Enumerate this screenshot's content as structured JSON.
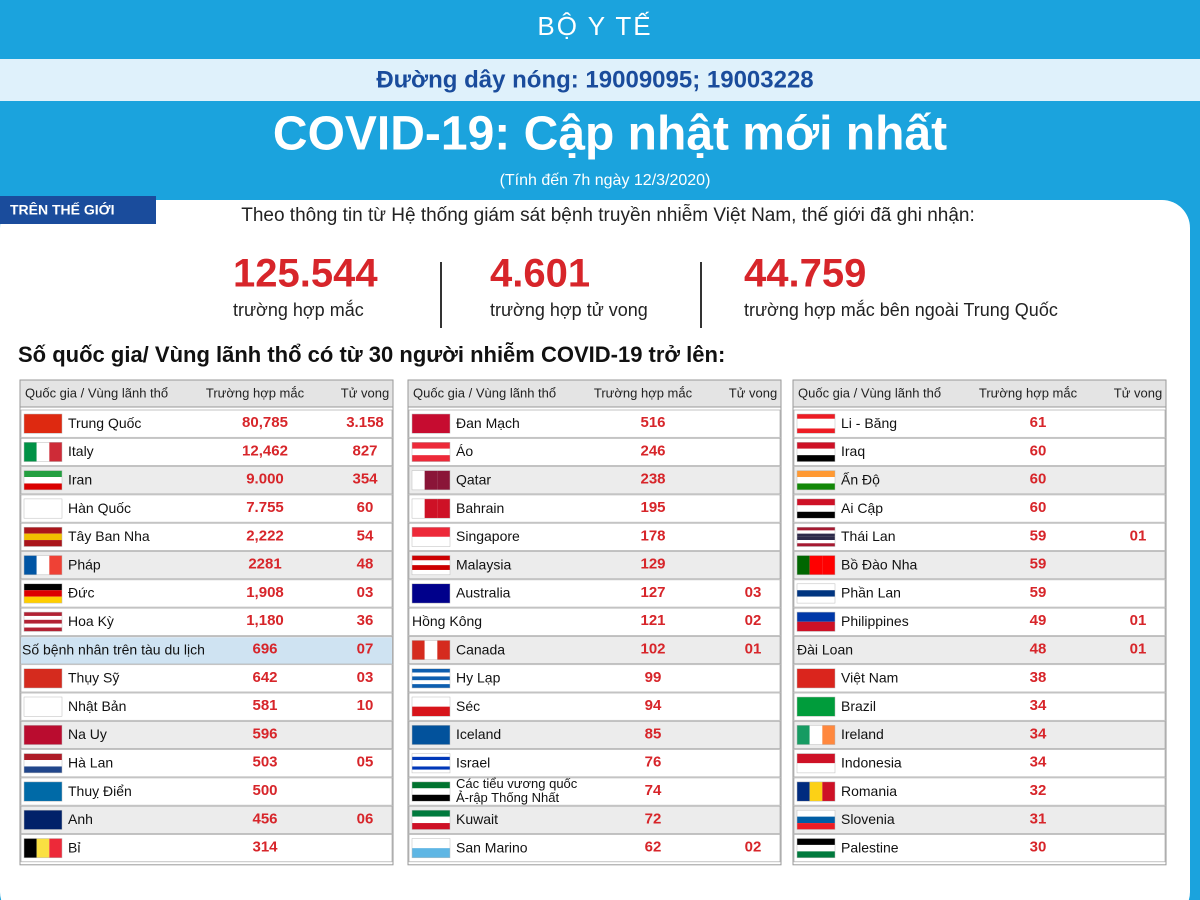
{
  "header": {
    "ministry": "BỘ Y TẾ",
    "hotline": "Đường dây nóng: 19009095; 19003228",
    "title": "COVID-19: Cập nhật mới nhất",
    "date": "(Tính đến 7h ngày 12/3/2020)"
  },
  "section": {
    "tag": "TRÊN THẾ GIỚI",
    "intro": "Theo thông tin từ Hệ thống giám sát bệnh truyền nhiễm Việt Nam, thế giới đã ghi nhận:"
  },
  "stats": [
    {
      "value": "125.544",
      "label": "trường hợp mắc"
    },
    {
      "value": "4.601",
      "label": "trường hợp tử vong"
    },
    {
      "value": "44.759",
      "label": "trường hợp  mắc bên ngoài Trung Quốc"
    }
  ],
  "table_title": "Số quốc gia/ Vùng lãnh thổ có từ 30 người  nhiễm COVID-19 trở lên:",
  "tables": [
    {
      "columns": [
        "Quốc gia / Vùng lãnh thổ",
        "Trường hợp mắc",
        "Tử vong"
      ],
      "rows": [
        [
          "Trung Quốc",
          "80,785",
          "3.158"
        ],
        [
          "Italy",
          "12,462",
          "827"
        ],
        [
          "Iran",
          "9.000",
          "354"
        ],
        [
          "Hàn Quốc",
          "7.755",
          "60"
        ],
        [
          "Tây Ban Nha",
          "2,222",
          "54"
        ],
        [
          "Pháp",
          "2281",
          "48"
        ],
        [
          "Đức",
          "1,908",
          "03"
        ],
        [
          "Hoa Kỳ",
          "1,180",
          "36"
        ],
        [
          "Số bệnh nhân trên tàu du lịch",
          "696",
          "07"
        ],
        [
          "Thụy Sỹ",
          "642",
          "03"
        ],
        [
          "Nhật Bản",
          "581",
          "10"
        ],
        [
          "Na Uy",
          "596"
        ],
        [
          "Hà Lan",
          "503",
          "05"
        ],
        [
          "Thuỵ Điển",
          "500"
        ],
        [
          "Anh",
          "456",
          "06"
        ],
        [
          "Bỉ",
          "314"
        ]
      ]
    },
    {
      "columns": [
        "Quốc gia / Vùng lãnh thổ",
        "Trường hợp mắc",
        "Tử vong"
      ],
      "rows": [
        [
          "Đan Mạch",
          "516"
        ],
        [
          "Áo",
          "246"
        ],
        [
          "Qatar",
          "238"
        ],
        [
          "Bahrain",
          "195"
        ],
        [
          "Singapore",
          "178"
        ],
        [
          "Malaysia",
          "129"
        ],
        [
          "Australia",
          "127",
          "03"
        ],
        [
          "Hồng Kông",
          "121",
          "02"
        ],
        [
          "Canada",
          "102",
          "01"
        ],
        [
          "Hy Lạp",
          "99"
        ],
        [
          "Séc",
          "94"
        ],
        [
          "Iceland",
          "85"
        ],
        [
          "Israel",
          "76"
        ],
        [
          [
            "Các tiểu vương quốc",
            "Ả-rập Thống Nhất"
          ],
          "74"
        ],
        [
          "Kuwait",
          "72"
        ],
        [
          "San Marino",
          "62",
          "02"
        ]
      ]
    },
    {
      "columns": [
        "Quốc gia / Vùng lãnh thổ",
        "Trường hợp mắc",
        "Tử vong"
      ],
      "rows": [
        [
          "Li - Băng",
          "61"
        ],
        [
          "Iraq",
          "60"
        ],
        [
          "Ấn Độ",
          "60"
        ],
        [
          "Ai Cập",
          "60"
        ],
        [
          "Thái Lan",
          "59",
          "01"
        ],
        [
          "Bồ Đào Nha",
          "59"
        ],
        [
          "Phần Lan",
          "59"
        ],
        [
          "Philippines",
          "49",
          "01"
        ],
        [
          "Đài Loan",
          "48",
          "01"
        ],
        [
          "Việt Nam",
          "38"
        ],
        [
          "Brazil",
          "34"
        ],
        [
          "Ireland",
          "34"
        ],
        [
          "Indonesia",
          "34"
        ],
        [
          "Romania",
          "32"
        ],
        [
          "Slovenia",
          "31"
        ],
        [
          "Palestine",
          "30"
        ]
      ]
    }
  ]
}
